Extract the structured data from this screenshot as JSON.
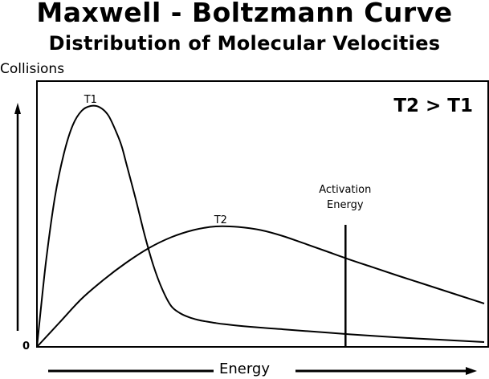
{
  "title": "Maxwell - Boltzmann Curve",
  "subtitle": "Distribution of Molecular Velocities",
  "note": "T2 > T1",
  "chart_data": {
    "type": "line",
    "title": "Maxwell - Boltzmann Curve",
    "subtitle": "Distribution of Molecular Velocities",
    "xlabel": "Energy",
    "ylabel": "Collisions",
    "origin_label": "0",
    "xlim": [
      0,
      100
    ],
    "ylim": [
      0,
      100
    ],
    "grid": false,
    "legend": "none",
    "series": [
      {
        "name": "T1",
        "x": [
          0,
          2,
          4,
          6,
          8,
          10,
          12,
          14,
          16,
          18,
          19,
          20,
          22,
          24,
          26,
          28,
          30,
          32,
          34,
          36,
          38,
          40,
          42,
          45,
          50,
          55,
          60,
          65,
          70,
          80,
          90,
          100
        ],
        "y": [
          0,
          35,
          62,
          80,
          92,
          98,
          100,
          99.5,
          96,
          88,
          83,
          76,
          62,
          47,
          34,
          24,
          17,
          14,
          12.3,
          11.2,
          10.5,
          9.9,
          9.4,
          8.8,
          8.0,
          7.3,
          6.6,
          5.9,
          5.2,
          4.0,
          3.0,
          2.0
        ]
      },
      {
        "name": "T2",
        "x": [
          0,
          5,
          10,
          15,
          20,
          25,
          30,
          35,
          40,
          45,
          50,
          55,
          60,
          65,
          70,
          75,
          80,
          85,
          90,
          95,
          100
        ],
        "y": [
          0,
          10,
          20,
          28,
          35,
          41,
          45.5,
          48.5,
          50,
          49.8,
          48.5,
          46,
          42.8,
          39.5,
          36.2,
          33.1,
          30,
          27,
          24,
          21,
          18
        ]
      }
    ],
    "annotations": [
      {
        "text_lines": [
          "Activation",
          "Energy"
        ],
        "x": 69,
        "type": "vertical-line"
      }
    ]
  }
}
